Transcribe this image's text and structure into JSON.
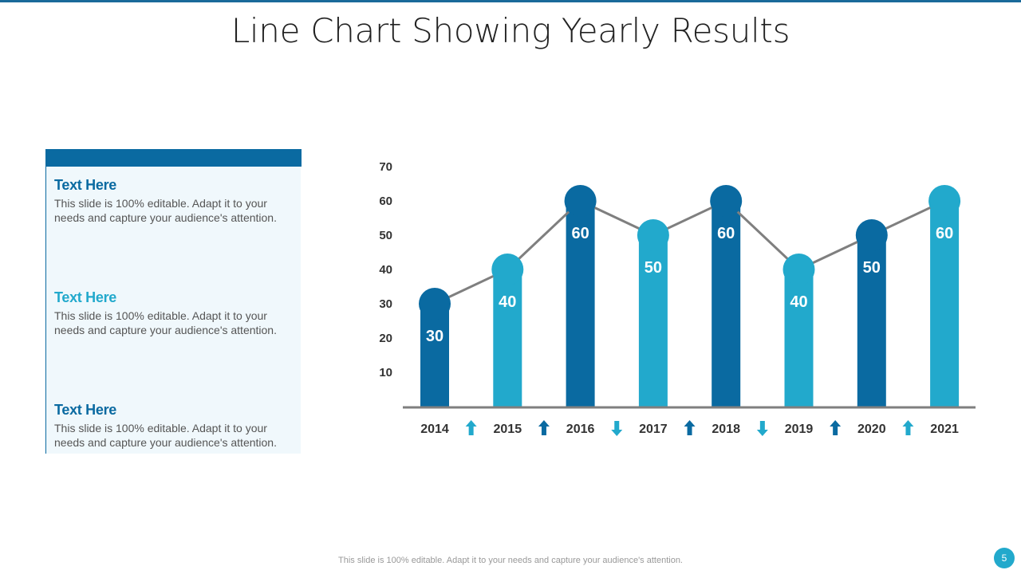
{
  "slide": {
    "title": "Line Chart Showing Yearly Results",
    "footer_note": "This slide is 100% editable. Adapt it to your needs and capture your audience's attention.",
    "page_number": "5"
  },
  "panel": {
    "items": [
      {
        "heading": "Text Here",
        "body": "This slide is 100% editable.  Adapt it to your needs and capture your audience's attention."
      },
      {
        "heading": "Text Here",
        "body": "This slide is 100% editable.  Adapt it to your needs and capture your audience's attention."
      },
      {
        "heading": "Text Here",
        "body": "This slide is 100% editable.  Adapt it to your needs and capture your audience's attention."
      }
    ]
  },
  "colors": {
    "dark_blue": "#0a6aa1",
    "light_blue": "#22a9cc",
    "connector": "#7f7f7f",
    "axis": "#7f7f7f"
  },
  "chart_data": {
    "type": "bar",
    "title": "",
    "xlabel": "",
    "ylabel": "",
    "ylim": [
      0,
      70
    ],
    "yticks": [
      10,
      20,
      30,
      40,
      50,
      60,
      70
    ],
    "grid": false,
    "categories": [
      "2014",
      "2015",
      "2016",
      "2017",
      "2018",
      "2019",
      "2020",
      "2021"
    ],
    "values": [
      30,
      40,
      60,
      50,
      60,
      40,
      50,
      60
    ],
    "bar_colors": [
      "dark",
      "light",
      "dark",
      "light",
      "dark",
      "light",
      "dark",
      "light"
    ],
    "connector_line": true,
    "trend_arrows": [
      {
        "between": [
          "2014",
          "2015"
        ],
        "direction": "up",
        "color": "light"
      },
      {
        "between": [
          "2015",
          "2016"
        ],
        "direction": "up",
        "color": "dark"
      },
      {
        "between": [
          "2016",
          "2017"
        ],
        "direction": "down",
        "color": "light"
      },
      {
        "between": [
          "2017",
          "2018"
        ],
        "direction": "up",
        "color": "dark"
      },
      {
        "between": [
          "2018",
          "2019"
        ],
        "direction": "down",
        "color": "light"
      },
      {
        "between": [
          "2019",
          "2020"
        ],
        "direction": "up",
        "color": "dark"
      },
      {
        "between": [
          "2020",
          "2021"
        ],
        "direction": "up",
        "color": "light"
      }
    ]
  }
}
